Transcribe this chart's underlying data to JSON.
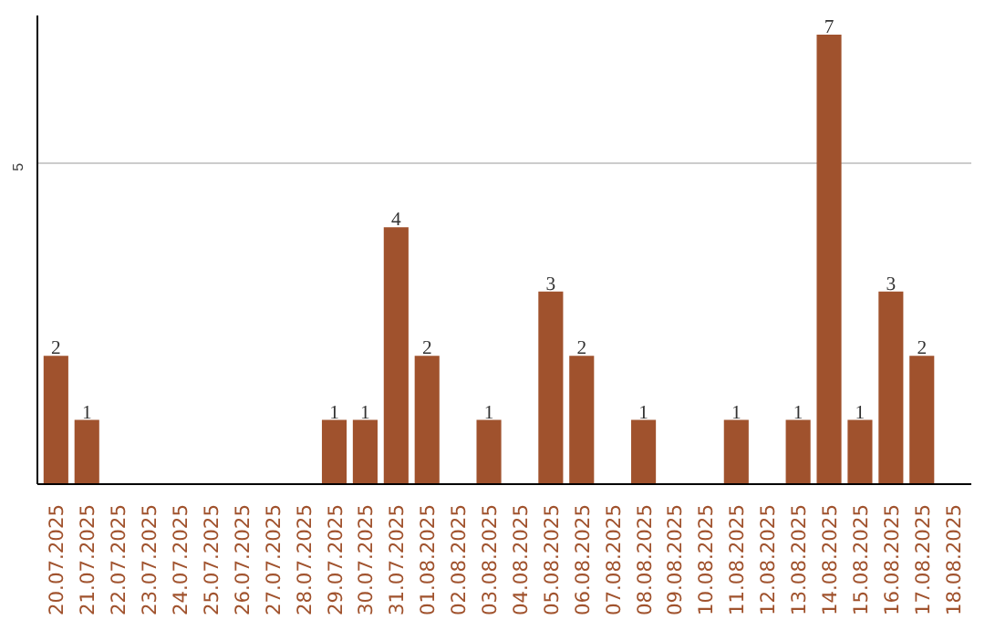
{
  "chart_data": {
    "type": "bar",
    "categories": [
      "20.07.2025",
      "21.07.2025",
      "22.07.2025",
      "23.07.2025",
      "24.07.2025",
      "25.07.2025",
      "26.07.2025",
      "27.07.2025",
      "28.07.2025",
      "29.07.2025",
      "30.07.2025",
      "31.07.2025",
      "01.08.2025",
      "02.08.2025",
      "03.08.2025",
      "04.08.2025",
      "05.08.2025",
      "06.08.2025",
      "07.08.2025",
      "08.08.2025",
      "09.08.2025",
      "10.08.2025",
      "11.08.2025",
      "12.08.2025",
      "13.08.2025",
      "14.08.2025",
      "15.08.2025",
      "16.08.2025",
      "17.08.2025",
      "18.08.2025"
    ],
    "values": [
      2,
      1,
      0,
      0,
      0,
      0,
      0,
      0,
      0,
      1,
      1,
      4,
      2,
      0,
      1,
      0,
      3,
      2,
      0,
      1,
      0,
      0,
      1,
      0,
      1,
      7,
      1,
      3,
      2,
      0
    ],
    "value_labels": [
      "2",
      "1",
      null,
      null,
      null,
      null,
      null,
      null,
      null,
      "1",
      "1",
      "4",
      "2",
      null,
      "1",
      null,
      "3",
      "2",
      null,
      "1",
      null,
      null,
      "1",
      null,
      "1",
      "7",
      "1",
      "3",
      "2",
      null
    ],
    "color": "#a0522d",
    "ylim": [
      0,
      7.3
    ],
    "yticks": [
      5
    ],
    "grid": "y"
  }
}
